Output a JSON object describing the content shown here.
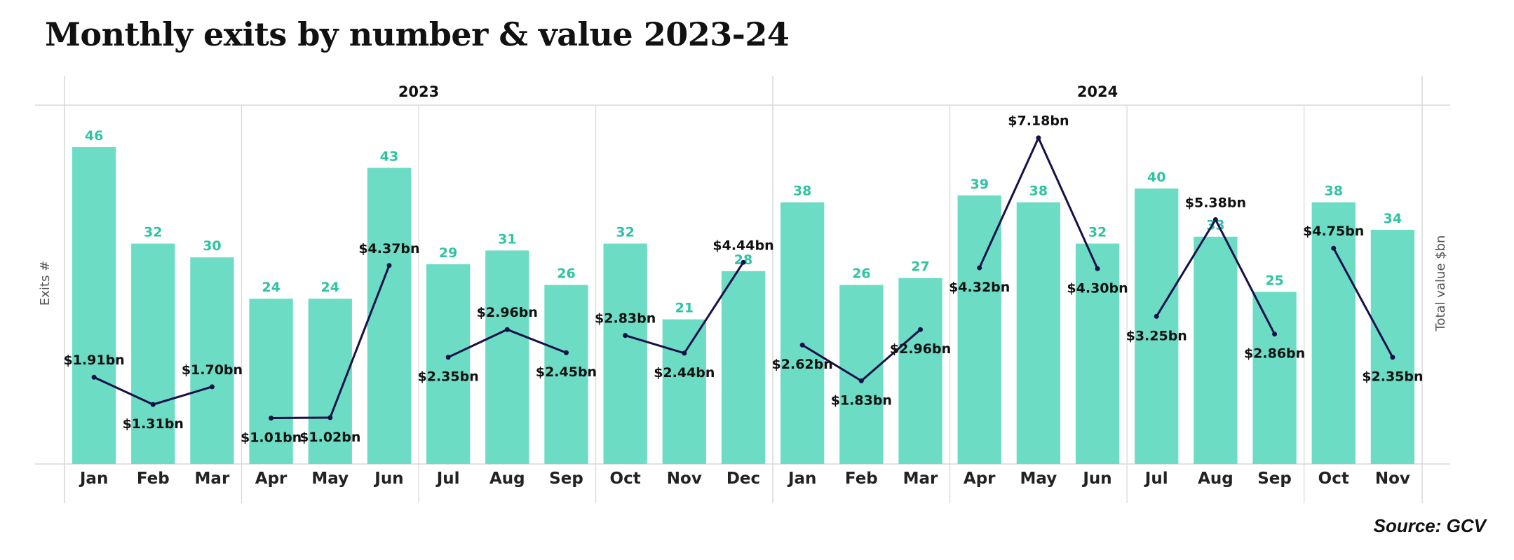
{
  "title": "Monthly exits by number & value 2023-24",
  "source": "Source: GCV",
  "colors": {
    "bar": "#6ddcc4",
    "count_label": "#2ec4a2",
    "line": "#16104a",
    "grid": "#d8d8d8"
  },
  "chart_data": {
    "type": "bar+line",
    "title": "Monthly exits by number & value 2023-24",
    "ylabel_left": "Exits #",
    "ylabel_right": "Total value $bn",
    "groups": [
      {
        "year": "2023",
        "months": [
          "Jan",
          "Feb",
          "Mar",
          "Apr",
          "May",
          "Jun",
          "Jul",
          "Aug",
          "Sep",
          "Oct",
          "Nov",
          "Dec"
        ]
      },
      {
        "year": "2024",
        "months": [
          "Jan",
          "Feb",
          "Mar",
          "Apr",
          "May",
          "Jun",
          "Jul",
          "Aug",
          "Sep",
          "Oct",
          "Nov"
        ]
      }
    ],
    "exits": [
      46,
      32,
      30,
      24,
      24,
      43,
      29,
      31,
      26,
      32,
      21,
      28,
      38,
      26,
      27,
      39,
      38,
      32,
      40,
      33,
      25,
      38,
      34
    ],
    "value_bn": [
      1.91,
      1.31,
      1.7,
      1.01,
      1.02,
      4.37,
      2.35,
      2.96,
      2.45,
      2.83,
      2.44,
      4.44,
      2.62,
      1.83,
      2.96,
      4.32,
      7.18,
      4.3,
      3.25,
      5.38,
      2.86,
      4.75,
      2.35
    ],
    "value_labels": [
      "$1.91bn",
      "$1.31bn",
      "$1.70bn",
      "$1.01bn",
      "$1.02bn",
      "$4.37bn",
      "$2.35bn",
      "$2.96bn",
      "$2.45bn",
      "$2.83bn",
      "$2.44bn",
      "$4.44bn",
      "$2.62bn",
      "$1.83bn",
      "$2.96bn",
      "$4.32bn",
      "$7.18bn",
      "$4.30bn",
      "$3.25bn",
      "$5.38bn",
      "$2.86bn",
      "$4.75bn",
      "$2.35bn"
    ],
    "line_segments_by_quarter": true,
    "ylim_left": [
      0,
      52
    ],
    "ylim_right": [
      0,
      7.5
    ]
  }
}
